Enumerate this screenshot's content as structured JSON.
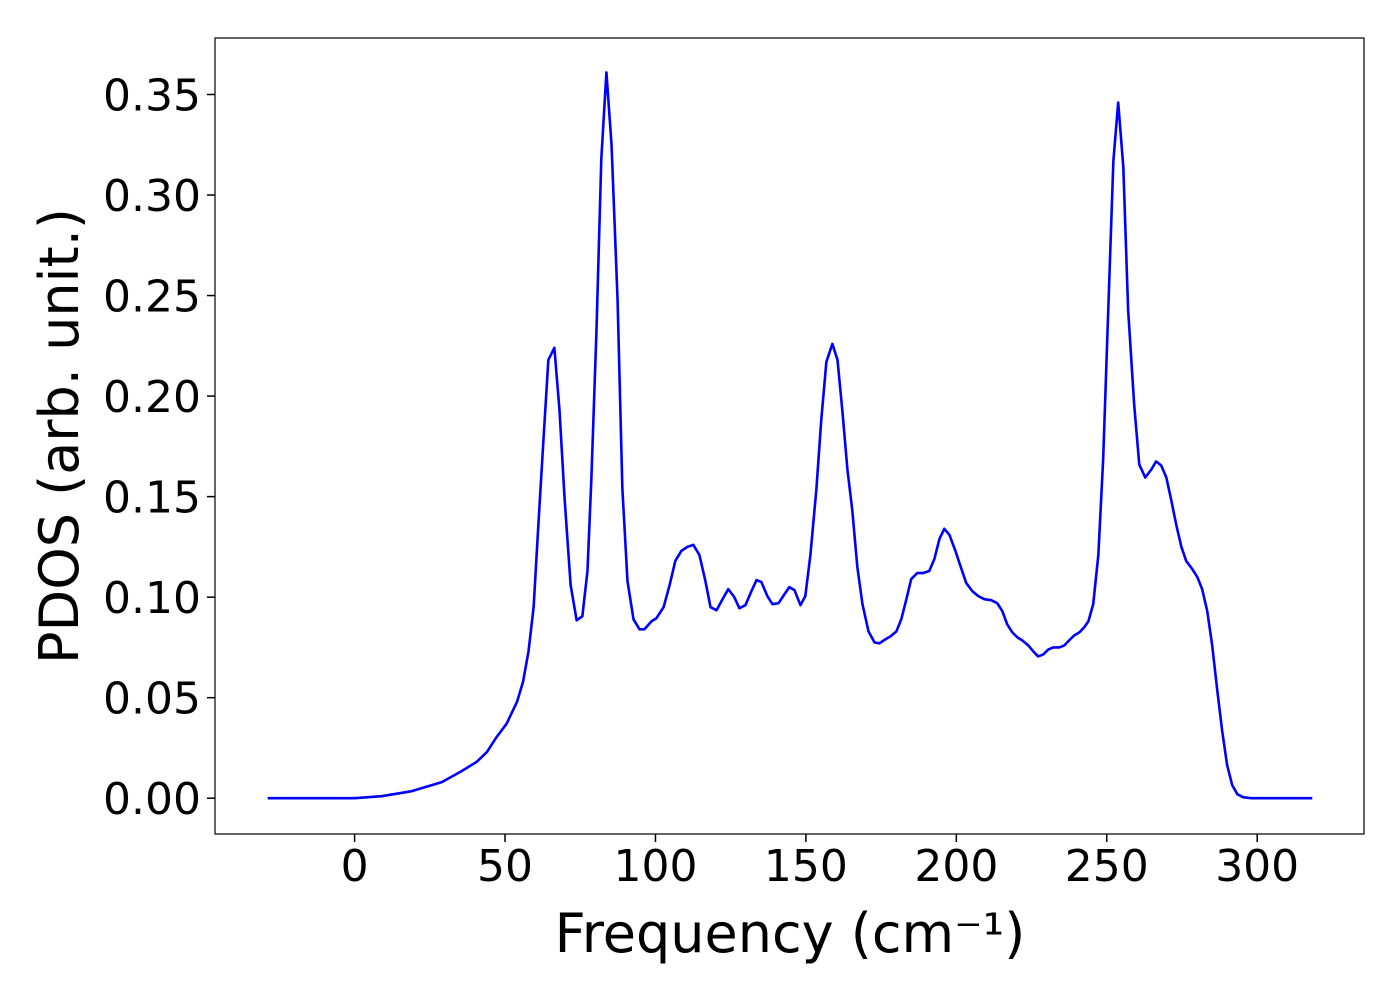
{
  "chart_data": {
    "type": "line",
    "xlabel": "Frequency (cm⁻¹)",
    "ylabel": "PDOS (arb. unit.)",
    "color": "#0000ff",
    "x": [
      -28.9,
      0,
      9,
      19,
      29,
      35.5,
      40.5,
      44,
      47,
      50.5,
      54,
      56,
      57.8,
      59.5,
      61,
      62.8,
      64.4,
      66.4,
      68.1,
      69.8,
      71.8,
      73.8,
      75.7,
      77.4,
      78.7,
      80.4,
      82,
      83.7,
      85.4,
      87.4,
      89,
      90.7,
      92.7,
      94.7,
      96.3,
      98.7,
      100.3,
      102.7,
      104.7,
      106.6,
      108.6,
      110.6,
      112.6,
      114.6,
      116.6,
      118.3,
      120.3,
      122.3,
      124.2,
      126.2,
      127.9,
      129.9,
      131.9,
      133.6,
      135.2,
      137.2,
      138.9,
      140.9,
      142.9,
      144.5,
      146.2,
      148.2,
      149.8,
      151.5,
      153.5,
      155.1,
      156.8,
      158.8,
      160.5,
      162.1,
      163.8,
      165.4,
      167.1,
      168.8,
      170.8,
      172.8,
      174.4,
      176.4,
      178.1,
      180.1,
      181.7,
      183.4,
      185,
      187,
      189,
      191,
      192.7,
      194.4,
      196,
      197.7,
      199.7,
      201.7,
      203.3,
      205.3,
      207.3,
      209.3,
      211.6,
      213.6,
      215.3,
      216.9,
      218.6,
      220.3,
      221.9,
      223.9,
      225.6,
      227.2,
      228.9,
      230.6,
      232.2,
      234.2,
      235.9,
      237.5,
      239.2,
      240.9,
      242.5,
      243.9,
      245.5,
      247.2,
      248.8,
      250.5,
      252.2,
      253.8,
      255.5,
      257.1,
      259.1,
      260.8,
      262.8,
      264.8,
      266.4,
      268.1,
      269.8,
      271.4,
      273.1,
      274.8,
      276.4,
      278.4,
      280.1,
      281.7,
      283.4,
      285,
      286.7,
      288.4,
      290,
      291.7,
      293.4,
      295.3,
      298,
      318.3
    ],
    "values": [
      0,
      0,
      0.001,
      0.0035,
      0.008,
      0.0134,
      0.018,
      0.023,
      0.03,
      0.037,
      0.048,
      0.058,
      0.073,
      0.095,
      0.134,
      0.179,
      0.218,
      0.224,
      0.193,
      0.149,
      0.106,
      0.0885,
      0.0905,
      0.113,
      0.159,
      0.233,
      0.318,
      0.361,
      0.325,
      0.248,
      0.154,
      0.108,
      0.089,
      0.084,
      0.084,
      0.088,
      0.0895,
      0.095,
      0.106,
      0.118,
      0.123,
      0.125,
      0.126,
      0.121,
      0.108,
      0.095,
      0.0935,
      0.099,
      0.104,
      0.1,
      0.0945,
      0.096,
      0.103,
      0.1085,
      0.1075,
      0.1005,
      0.0965,
      0.097,
      0.1015,
      0.105,
      0.1035,
      0.096,
      0.1005,
      0.121,
      0.154,
      0.188,
      0.217,
      0.226,
      0.218,
      0.193,
      0.1635,
      0.1435,
      0.115,
      0.0965,
      0.083,
      0.0775,
      0.077,
      0.079,
      0.0805,
      0.083,
      0.089,
      0.099,
      0.109,
      0.112,
      0.112,
      0.113,
      0.119,
      0.129,
      0.134,
      0.131,
      0.123,
      0.114,
      0.107,
      0.103,
      0.1005,
      0.099,
      0.0985,
      0.097,
      0.093,
      0.0865,
      0.0825,
      0.08,
      0.0785,
      0.076,
      0.073,
      0.0705,
      0.0715,
      0.074,
      0.075,
      0.075,
      0.076,
      0.0785,
      0.081,
      0.0825,
      0.085,
      0.088,
      0.0965,
      0.121,
      0.1685,
      0.243,
      0.317,
      0.346,
      0.314,
      0.243,
      0.196,
      0.166,
      0.1595,
      0.1635,
      0.1675,
      0.1655,
      0.1595,
      0.1485,
      0.136,
      0.125,
      0.118,
      0.114,
      0.11,
      0.104,
      0.093,
      0.0765,
      0.054,
      0.033,
      0.0165,
      0.0065,
      0.002,
      0.0005,
      0,
      0
    ],
    "xlim": [
      -46.4,
      335.5
    ],
    "ylim": [
      -0.0178,
      0.3781
    ],
    "xticks": [
      0,
      50,
      100,
      150,
      200,
      250,
      300
    ],
    "yticks": [
      {
        "value": 0,
        "label": "0.00"
      },
      {
        "value": 0.05,
        "label": "0.05"
      },
      {
        "value": 0.1,
        "label": "0.10"
      },
      {
        "value": 0.15,
        "label": "0.15"
      },
      {
        "value": 0.2,
        "label": "0.20"
      },
      {
        "value": 0.25,
        "label": "0.25"
      },
      {
        "value": 0.3,
        "label": "0.30"
      },
      {
        "value": 0.35,
        "label": "0.35"
      }
    ]
  }
}
